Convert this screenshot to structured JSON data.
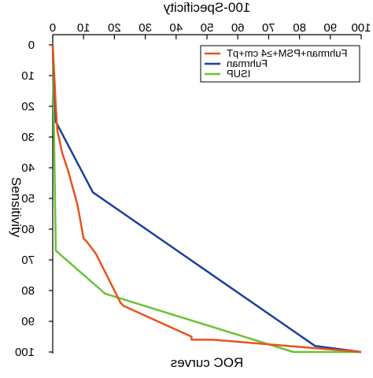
{
  "chart_data": {
    "type": "line",
    "title": "ROC curves",
    "xlabel": "100-Specificity",
    "ylabel": "Sensitivity",
    "xlim": [
      0,
      100
    ],
    "ylim": [
      0,
      100
    ],
    "x_ticks": [
      "0",
      "10",
      "20",
      "30",
      "40",
      "50",
      "60",
      "70",
      "80",
      "90",
      "100"
    ],
    "y_ticks": [
      "0",
      "10",
      "20",
      "30",
      "40",
      "50",
      "60",
      "70",
      "80",
      "90",
      "100"
    ],
    "legend_position": "top-right",
    "grid": false,
    "mirrored": true,
    "series": [
      {
        "name": "Fuhrman+PSM+≥4 cm+pT",
        "color": "#e8531c",
        "points": [
          [
            0,
            0
          ],
          [
            0.5,
            10
          ],
          [
            1,
            20
          ],
          [
            1.5,
            28
          ],
          [
            2,
            30
          ],
          [
            3,
            35
          ],
          [
            5,
            41
          ],
          [
            8,
            52
          ],
          [
            10,
            63
          ],
          [
            11,
            64
          ],
          [
            14,
            68
          ],
          [
            19,
            78
          ],
          [
            22,
            84
          ],
          [
            23,
            85
          ],
          [
            45,
            95
          ],
          [
            45,
            96
          ],
          [
            52,
            96
          ],
          [
            100,
            100
          ]
        ]
      },
      {
        "name": "Fuhrman",
        "color": "#1f3f9a",
        "points": [
          [
            0,
            0
          ],
          [
            1,
            25
          ],
          [
            13,
            48
          ],
          [
            85,
            98
          ],
          [
            100,
            100
          ]
        ]
      },
      {
        "name": "ISUP",
        "color": "#6cc236",
        "points": [
          [
            0,
            0
          ],
          [
            1,
            67
          ],
          [
            17,
            81
          ],
          [
            78,
            100
          ],
          [
            100,
            100
          ]
        ]
      }
    ]
  }
}
